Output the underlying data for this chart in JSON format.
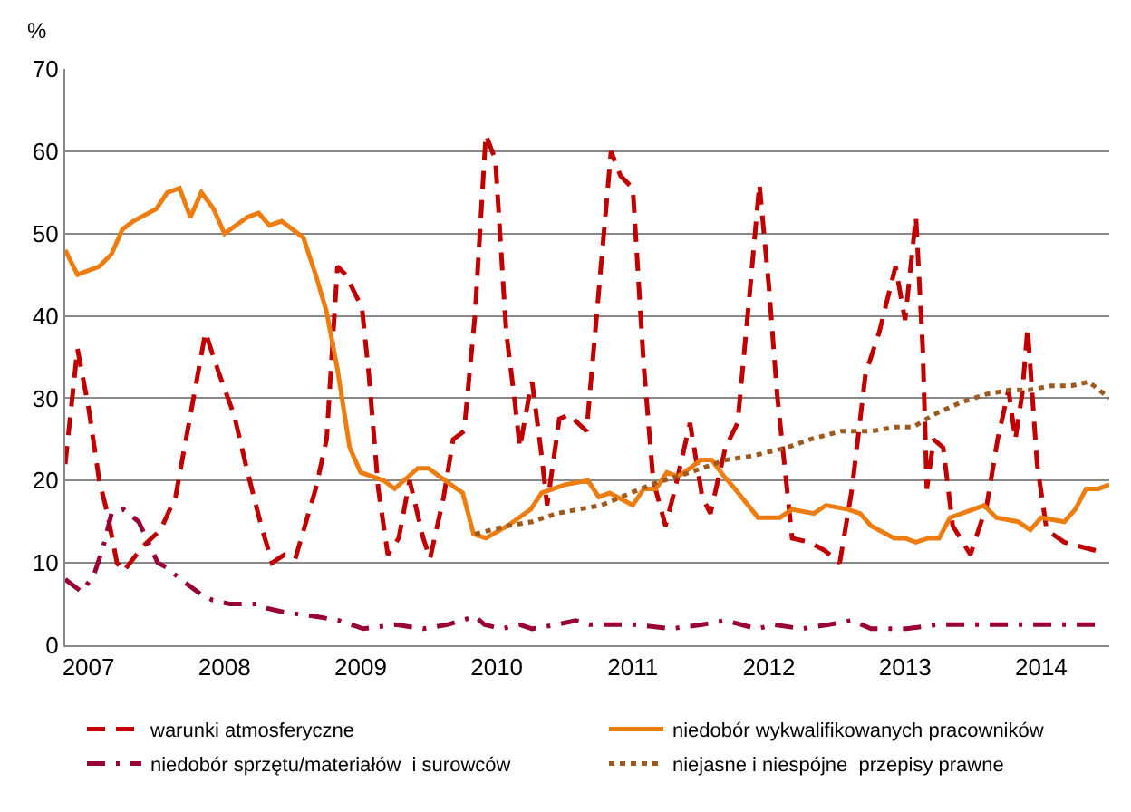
{
  "chart_data": {
    "type": "line",
    "ylabel": "%",
    "xlim": [
      2006.83,
      2014.5
    ],
    "xticks": [
      2007,
      2008,
      2009,
      2010,
      2011,
      2012,
      2013,
      2014
    ],
    "ylim": [
      0,
      70
    ],
    "yticks": [
      0,
      10,
      20,
      30,
      40,
      50,
      60,
      70
    ],
    "grid": "y",
    "legend": "bottom",
    "marker": "none",
    "series": [
      {
        "name": "warunki atmosferyczne",
        "color": "#c00000",
        "line_style": "dashed",
        "x": [
          2006.83,
          2006.92,
          2007.0,
          2007.08,
          2007.14,
          2007.21,
          2007.26,
          2007.4,
          2007.53,
          2007.64,
          2007.75,
          2007.86,
          2007.96,
          2008.07,
          2008.17,
          2008.27,
          2008.35,
          2008.44,
          2008.52,
          2008.67,
          2008.75,
          2008.83,
          2008.89,
          2009.01,
          2009.06,
          2009.13,
          2009.2,
          2009.28,
          2009.36,
          2009.46,
          2009.51,
          2009.61,
          2009.68,
          2009.76,
          2009.84,
          2009.92,
          2009.99,
          2010.07,
          2010.13,
          2010.17,
          2010.24,
          2010.26,
          2010.33,
          2010.37,
          2010.46,
          2010.53,
          2010.66,
          2010.84,
          2010.91,
          2011.0,
          2011.08,
          2011.15,
          2011.24,
          2011.31,
          2011.42,
          2011.51,
          2011.57,
          2011.68,
          2011.77,
          2011.86,
          2011.93,
          2012.0,
          2012.06,
          2012.17,
          2012.3,
          2012.41,
          2012.52,
          2012.61,
          2012.71,
          2012.81,
          2012.93,
          2013.0,
          2013.08,
          2013.13,
          2013.16,
          2013.21,
          2013.28,
          2013.35,
          2013.48,
          2013.6,
          2013.68,
          2013.76,
          2013.81,
          2013.86,
          2013.9,
          2013.97,
          2014.04,
          2014.17,
          2014.4
        ],
        "values": [
          22,
          36,
          29,
          20,
          16,
          10,
          9,
          12,
          14,
          18,
          28,
          38,
          33,
          28,
          21,
          14.5,
          10,
          11,
          10.5,
          19,
          25,
          46,
          45,
          41,
          33,
          19,
          11,
          13,
          20,
          13,
          10.5,
          18,
          25,
          26,
          40,
          62,
          59,
          38,
          30,
          24,
          30.5,
          32,
          23,
          17,
          27.5,
          28,
          26,
          60,
          57,
          55.5,
          34,
          20,
          14.5,
          19,
          27,
          18,
          16,
          24,
          27,
          43,
          56,
          43.5,
          30.5,
          13,
          12.5,
          11.5,
          10,
          19,
          33,
          38,
          46,
          39.5,
          52,
          36,
          19,
          25,
          24,
          14.5,
          11,
          17,
          25,
          31,
          25,
          30.5,
          38.5,
          22,
          14,
          12.5,
          11.5
        ]
      },
      {
        "name": "niedobór wykwalifikowanych pracowników",
        "color": "#ed7d11",
        "line_style": "solid",
        "x": [
          2006.83,
          2006.92,
          2007.08,
          2007.17,
          2007.25,
          2007.33,
          2007.5,
          2007.58,
          2007.67,
          2007.75,
          2007.83,
          2007.92,
          2008.0,
          2008.17,
          2008.25,
          2008.33,
          2008.42,
          2008.58,
          2008.67,
          2008.75,
          2008.83,
          2008.92,
          2009.0,
          2009.17,
          2009.25,
          2009.42,
          2009.5,
          2009.58,
          2009.75,
          2009.83,
          2009.92,
          2010.08,
          2010.25,
          2010.33,
          2010.5,
          2010.67,
          2010.75,
          2010.83,
          2011.0,
          2011.08,
          2011.17,
          2011.25,
          2011.33,
          2011.42,
          2011.5,
          2011.58,
          2011.67,
          2011.75,
          2011.92,
          2012.08,
          2012.17,
          2012.33,
          2012.42,
          2012.58,
          2012.67,
          2012.75,
          2012.92,
          2013.0,
          2013.08,
          2013.17,
          2013.25,
          2013.33,
          2013.5,
          2013.58,
          2013.67,
          2013.83,
          2013.92,
          2014.0,
          2014.17,
          2014.25,
          2014.33,
          2014.42,
          2014.5
        ],
        "values": [
          48,
          45,
          46,
          47.5,
          50.5,
          51.5,
          53,
          55,
          55.5,
          52,
          55,
          53,
          50,
          52,
          52.5,
          51,
          51.5,
          49.5,
          45,
          40.5,
          33.5,
          24,
          21,
          20,
          19,
          21.5,
          21.5,
          20.5,
          18.5,
          13.5,
          13,
          14.5,
          16.5,
          18.5,
          19.5,
          20,
          18,
          18.5,
          17,
          19,
          19,
          21,
          20.5,
          21.5,
          22.5,
          22.5,
          20.5,
          19,
          15.5,
          15.5,
          16.5,
          16,
          17,
          16.5,
          16,
          14.5,
          13,
          13,
          12.5,
          13,
          13,
          15.5,
          16.5,
          17,
          15.5,
          15,
          14,
          15.5,
          15,
          16.5,
          19,
          19,
          19.5
        ]
      },
      {
        "name": "niedobór sprzętu/materiałów  i surowców",
        "color": "#990033",
        "line_style": "dashdot",
        "x": [
          2006.83,
          2006.95,
          2007.04,
          2007.11,
          2007.17,
          2007.26,
          2007.37,
          2007.51,
          2007.57,
          2007.68,
          2007.84,
          2007.91,
          2008.04,
          2008.24,
          2008.31,
          2008.44,
          2008.67,
          2008.84,
          2009.02,
          2009.26,
          2009.46,
          2009.64,
          2009.84,
          2009.91,
          2010.03,
          2010.17,
          2010.26,
          2010.44,
          2010.58,
          2010.68,
          2011.01,
          2011.28,
          2011.51,
          2011.68,
          2011.91,
          2012.04,
          2012.24,
          2012.44,
          2012.61,
          2012.75,
          2013.01,
          2013.24,
          2013.55,
          2013.86,
          2014.13,
          2014.4
        ],
        "values": [
          8,
          6.5,
          8.5,
          12,
          16,
          16.5,
          15,
          10,
          9.5,
          8,
          6,
          5.5,
          5,
          5,
          4.5,
          4,
          3.5,
          3,
          2,
          2.5,
          2,
          2.5,
          3.5,
          2.5,
          2,
          2.5,
          2,
          2.5,
          3,
          2.5,
          2.5,
          2,
          2.5,
          3,
          2,
          2.5,
          2,
          2.5,
          3,
          2,
          2,
          2.5,
          2.5,
          2.5,
          2.5,
          2.5
        ]
      },
      {
        "name": "niejasne i niespójne  przepisy prawne",
        "color": "#9c5a1e",
        "line_style": "dotted",
        "x": [
          2009.84,
          2010.08,
          2010.26,
          2010.44,
          2010.6,
          2010.77,
          2011.13,
          2011.42,
          2011.68,
          2011.88,
          2012.13,
          2012.3,
          2012.53,
          2012.75,
          2012.93,
          2013.06,
          2013.21,
          2013.41,
          2013.6,
          2013.77,
          2013.91,
          2014.07,
          2014.22,
          2014.35,
          2014.5
        ],
        "values": [
          13.5,
          14.5,
          15,
          16,
          16.5,
          17,
          19.5,
          21,
          22.5,
          23,
          24,
          25,
          26,
          26,
          26.5,
          26.5,
          28,
          29.5,
          30.5,
          31,
          31,
          31.5,
          31.5,
          32,
          30
        ]
      }
    ]
  }
}
